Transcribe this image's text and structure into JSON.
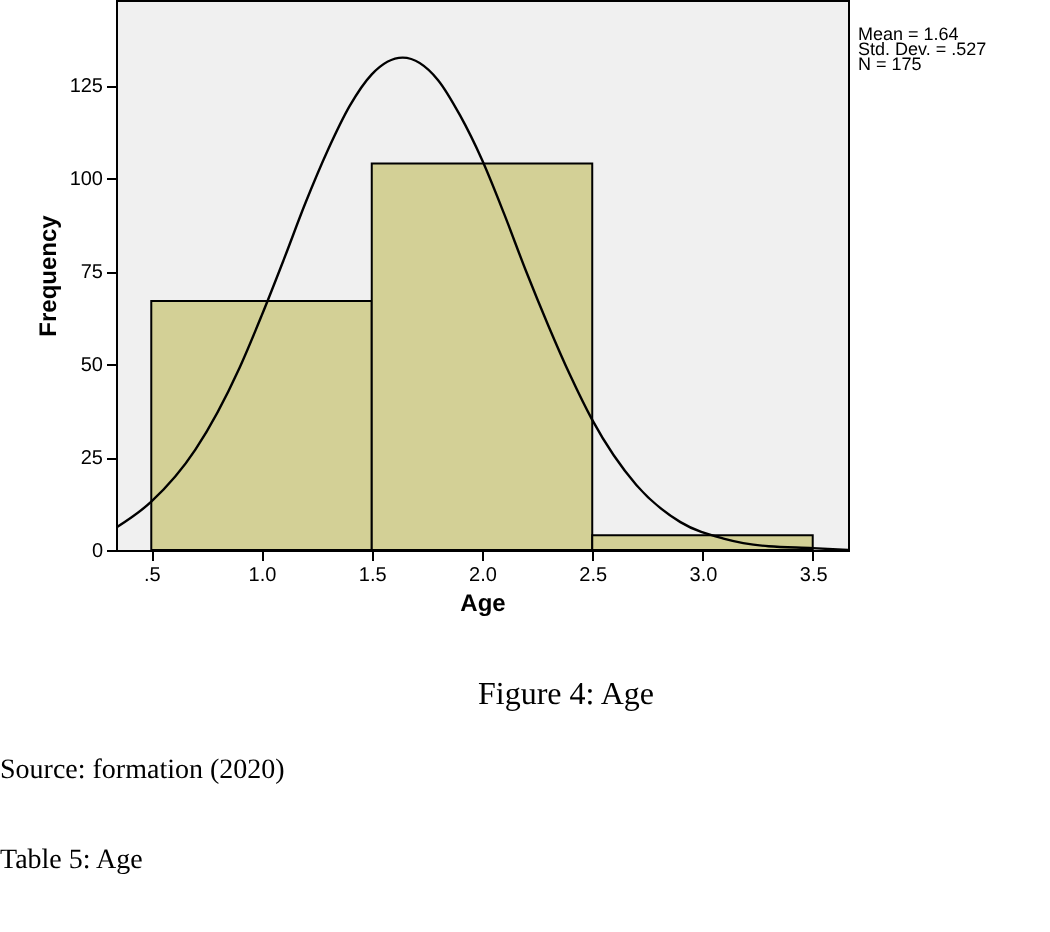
{
  "chart_data": {
    "type": "histogram",
    "xlabel": "Age",
    "ylabel": "Frequency",
    "bins": [
      0.5,
      1.5,
      2.5,
      3.5
    ],
    "values": [
      67,
      104,
      4
    ],
    "color": "#d3d096",
    "xlim": [
      0.34,
      3.66
    ],
    "ylim": [
      0,
      148
    ],
    "xticks": [
      {
        "value": 0.5,
        "label": ".5"
      },
      {
        "value": 1,
        "label": "1.0"
      },
      1.5,
      {
        "value": 2,
        "label": "2.0"
      },
      2.5,
      {
        "value": 3,
        "label": "3.0"
      },
      3.5
    ],
    "yticks": [
      0,
      25,
      50,
      75,
      100,
      125
    ],
    "grid": false,
    "series": [
      {
        "type": "line",
        "color": "#000000",
        "x": [
          0.34,
          0.5,
          0.7,
          0.9,
          1.0,
          1.1,
          1.2,
          1.3,
          1.4,
          1.5,
          1.64,
          1.8,
          1.9,
          2.0,
          2.1,
          2.2,
          2.3,
          2.4,
          2.5,
          2.7,
          2.9,
          3.1,
          3.3,
          3.5,
          3.66
        ],
        "values": [
          6,
          13,
          27,
          49,
          63,
          78,
          93.5,
          107.5,
          119.5,
          128,
          132.5,
          126.5,
          117,
          105,
          90.5,
          75,
          60.5,
          47,
          35,
          17.5,
          7.5,
          3,
          1,
          0.5,
          0
        ]
      }
    ],
    "annotations": [
      "Mean = 1.64",
      "Std. Dev. = .527",
      "N = 175",
      "Figure 4: Age",
      "Source: formation (2020)",
      "Table 5: Age"
    ]
  }
}
